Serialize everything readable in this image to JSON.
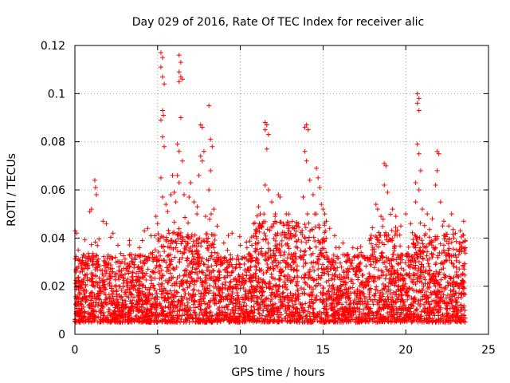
{
  "chart_data": {
    "type": "scatter",
    "title": "Day 029 of 2016, Rate Of TEC Index for receiver alic",
    "xlabel": "GPS time / hours",
    "ylabel": "ROTI / TECUs",
    "xlim": [
      0,
      25
    ],
    "ylim": [
      0,
      0.12
    ],
    "x_ticks": [
      0,
      5,
      10,
      15,
      20,
      25
    ],
    "x_tick_labels": [
      "0",
      "5",
      "10",
      "15",
      "20",
      "25"
    ],
    "y_ticks": [
      0,
      0.02,
      0.04,
      0.06,
      0.08,
      0.1,
      0.12
    ],
    "y_tick_labels": [
      "0",
      "0.02",
      "0.04",
      "0.06",
      "0.08",
      "0.1",
      "0.12"
    ],
    "grid": true,
    "marker": "+",
    "color": "#ff0000",
    "data_x_range": [
      0,
      23.6
    ],
    "series": [
      {
        "name": "ROTI",
        "points": [
          [
            0.1,
            0.042
          ],
          [
            0.2,
            0.035
          ],
          [
            0.5,
            0.033
          ],
          [
            0.9,
            0.051
          ],
          [
            1.0,
            0.052
          ],
          [
            1.2,
            0.064
          ],
          [
            1.25,
            0.061
          ],
          [
            1.3,
            0.058
          ],
          [
            1.7,
            0.047
          ],
          [
            1.9,
            0.046
          ],
          [
            2.3,
            0.042
          ],
          [
            2.6,
            0.037
          ],
          [
            3.3,
            0.039
          ],
          [
            3.9,
            0.036
          ],
          [
            4.2,
            0.043
          ],
          [
            4.4,
            0.044
          ],
          [
            4.6,
            0.041
          ],
          [
            4.7,
            0.034
          ],
          [
            4.9,
            0.049
          ],
          [
            5.0,
            0.046
          ],
          [
            5.2,
            0.117
          ],
          [
            5.3,
            0.115
          ],
          [
            5.2,
            0.111
          ],
          [
            5.3,
            0.107
          ],
          [
            5.4,
            0.104
          ],
          [
            5.3,
            0.093
          ],
          [
            5.35,
            0.091
          ],
          [
            5.2,
            0.089
          ],
          [
            5.3,
            0.082
          ],
          [
            5.4,
            0.078
          ],
          [
            5.2,
            0.065
          ],
          [
            5.3,
            0.057
          ],
          [
            5.5,
            0.054
          ],
          [
            5.6,
            0.051
          ],
          [
            5.8,
            0.058
          ],
          [
            5.9,
            0.066
          ],
          [
            6.0,
            0.059
          ],
          [
            6.1,
            0.055
          ],
          [
            6.3,
            0.116
          ],
          [
            6.4,
            0.113
          ],
          [
            6.3,
            0.109
          ],
          [
            6.4,
            0.107
          ],
          [
            6.3,
            0.105
          ],
          [
            6.5,
            0.106
          ],
          [
            6.4,
            0.09
          ],
          [
            6.2,
            0.079
          ],
          [
            6.3,
            0.076
          ],
          [
            6.2,
            0.066
          ],
          [
            6.5,
            0.072
          ],
          [
            6.3,
            0.063
          ],
          [
            6.6,
            0.058
          ],
          [
            6.9,
            0.057
          ],
          [
            7.0,
            0.063
          ],
          [
            7.2,
            0.055
          ],
          [
            7.4,
            0.053
          ],
          [
            7.6,
            0.087
          ],
          [
            7.7,
            0.086
          ],
          [
            7.6,
            0.074
          ],
          [
            7.8,
            0.076
          ],
          [
            7.7,
            0.072
          ],
          [
            7.5,
            0.066
          ],
          [
            7.9,
            0.049
          ],
          [
            8.1,
            0.095
          ],
          [
            8.2,
            0.081
          ],
          [
            8.3,
            0.078
          ],
          [
            8.2,
            0.068
          ],
          [
            8.1,
            0.06
          ],
          [
            8.4,
            0.052
          ],
          [
            8.6,
            0.045
          ],
          [
            9.0,
            0.038
          ],
          [
            9.5,
            0.042
          ],
          [
            10.0,
            0.037
          ],
          [
            10.4,
            0.036
          ],
          [
            10.8,
            0.046
          ],
          [
            11.1,
            0.053
          ],
          [
            11.2,
            0.05
          ],
          [
            11.5,
            0.088
          ],
          [
            11.6,
            0.087
          ],
          [
            11.5,
            0.085
          ],
          [
            11.7,
            0.083
          ],
          [
            11.6,
            0.077
          ],
          [
            11.5,
            0.062
          ],
          [
            11.7,
            0.06
          ],
          [
            11.9,
            0.055
          ],
          [
            12.1,
            0.049
          ],
          [
            12.3,
            0.058
          ],
          [
            12.4,
            0.057
          ],
          [
            12.6,
            0.046
          ],
          [
            12.9,
            0.044
          ],
          [
            13.2,
            0.041
          ],
          [
            13.5,
            0.046
          ],
          [
            13.8,
            0.057
          ],
          [
            13.9,
            0.086
          ],
          [
            14.0,
            0.087
          ],
          [
            14.1,
            0.085
          ],
          [
            13.9,
            0.076
          ],
          [
            14.0,
            0.072
          ],
          [
            14.2,
            0.064
          ],
          [
            14.4,
            0.058
          ],
          [
            14.6,
            0.069
          ],
          [
            14.7,
            0.065
          ],
          [
            14.8,
            0.061
          ],
          [
            14.9,
            0.054
          ],
          [
            15.0,
            0.052
          ],
          [
            15.2,
            0.047
          ],
          [
            15.4,
            0.044
          ],
          [
            15.7,
            0.041
          ],
          [
            16.2,
            0.038
          ],
          [
            16.8,
            0.036
          ],
          [
            17.3,
            0.034
          ],
          [
            17.9,
            0.04
          ],
          [
            18.2,
            0.054
          ],
          [
            18.3,
            0.052
          ],
          [
            18.5,
            0.049
          ],
          [
            18.7,
            0.071
          ],
          [
            18.8,
            0.07
          ],
          [
            18.7,
            0.062
          ],
          [
            18.9,
            0.059
          ],
          [
            19.2,
            0.052
          ],
          [
            19.4,
            0.049
          ],
          [
            19.7,
            0.045
          ],
          [
            20.0,
            0.05
          ],
          [
            20.3,
            0.046
          ],
          [
            20.6,
            0.055
          ],
          [
            20.7,
            0.1
          ],
          [
            20.8,
            0.098
          ],
          [
            20.7,
            0.096
          ],
          [
            20.8,
            0.093
          ],
          [
            20.7,
            0.079
          ],
          [
            20.8,
            0.075
          ],
          [
            20.9,
            0.068
          ],
          [
            20.6,
            0.063
          ],
          [
            20.8,
            0.06
          ],
          [
            21.0,
            0.052
          ],
          [
            21.3,
            0.05
          ],
          [
            21.6,
            0.048
          ],
          [
            21.8,
            0.062
          ],
          [
            21.9,
            0.076
          ],
          [
            22.0,
            0.075
          ],
          [
            21.9,
            0.068
          ],
          [
            22.1,
            0.055
          ],
          [
            22.3,
            0.047
          ],
          [
            22.6,
            0.045
          ],
          [
            23.0,
            0.042
          ],
          [
            23.3,
            0.043
          ],
          [
            23.5,
            0.047
          ],
          [
            23.6,
            0.039
          ]
        ],
        "note": "dense background cloud of points spanning 0.004-0.035 TECU/min across 0-23.6 h"
      }
    ]
  }
}
